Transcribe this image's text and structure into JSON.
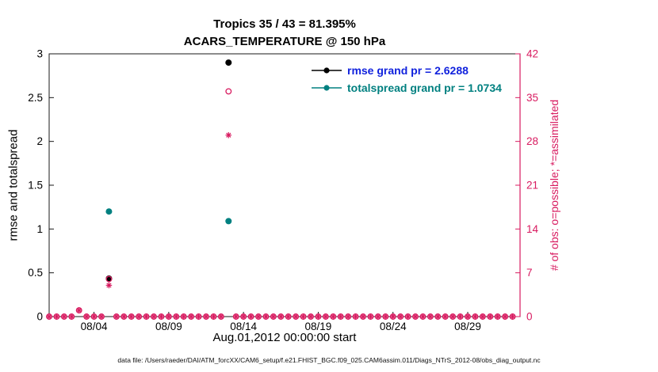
{
  "title": {
    "line1": "Tropics 35 / 43 = 81.395%",
    "line2": "ACARS_TEMPERATURE @ 150 hPa"
  },
  "colors": {
    "pink": "#d81b60",
    "teal": "#008080",
    "blue": "#1122dd",
    "black": "#000000",
    "frame": "#1a1a1a"
  },
  "legend": {
    "items": [
      {
        "label": "rmse grand pr = 2.6288",
        "marker": "line-dot",
        "marker_color_key": "black",
        "text_color_key": "blue"
      },
      {
        "label": "totalspread grand pr = 1.0734",
        "marker": "line-dot",
        "marker_color_key": "teal",
        "text_color_key": "teal"
      }
    ]
  },
  "axes": {
    "left": {
      "label": "rmse and totalspread",
      "ticks": [
        0,
        0.5,
        1,
        1.5,
        2,
        2.5,
        3
      ],
      "range": [
        0,
        3
      ]
    },
    "right": {
      "label": "# of obs: o=possible; *=assimilated",
      "ticks": [
        0,
        7,
        14,
        21,
        28,
        35,
        42
      ],
      "range": [
        0,
        42
      ]
    },
    "x": {
      "label": "Aug.01,2012 00:00:00 start",
      "ticks": [
        {
          "day": 4,
          "label": "08/04"
        },
        {
          "day": 9,
          "label": "08/09"
        },
        {
          "day": 14,
          "label": "08/14"
        },
        {
          "day": 19,
          "label": "08/19"
        },
        {
          "day": 24,
          "label": "08/24"
        },
        {
          "day": 29,
          "label": "08/29"
        }
      ],
      "range": [
        1,
        32.5
      ]
    }
  },
  "chart_data": {
    "type": "scatter",
    "x_unit": "day of August 2012 (day 1 = Aug 01, 2012 00:00:00)",
    "left_axis": "rmse and totalspread",
    "right_axis": "# of obs (0-42)",
    "grid": false,
    "legend_position": "top-right-inside",
    "series": [
      {
        "name": "rmse",
        "axis": "left",
        "marker": "filled-circle",
        "color_key": "black",
        "points": [
          [
            5.0,
            0.434
          ],
          [
            13.0,
            2.9
          ]
        ]
      },
      {
        "name": "totalspread",
        "axis": "left",
        "marker": "filled-circle",
        "color_key": "teal",
        "points": [
          [
            5.0,
            1.2
          ],
          [
            13.0,
            1.09
          ]
        ]
      },
      {
        "name": "possible",
        "axis": "right",
        "marker": "open-circle",
        "color_key": "pink",
        "points": [
          [
            3.0,
            1
          ],
          [
            5.0,
            6
          ],
          [
            13.0,
            36
          ]
        ]
      },
      {
        "name": "assimilated",
        "axis": "right",
        "marker": "asterisk",
        "color_key": "pink",
        "points": [
          [
            3.0,
            1
          ],
          [
            5.0,
            5
          ],
          [
            13.0,
            29
          ]
        ]
      }
    ],
    "baseline_zero_markers": {
      "description": "possible (open circle) and assimilated (asterisk) markers at value 0 for every 12-hour bin with no obs",
      "series": [
        "possible",
        "assimilated"
      ],
      "start_day": 1,
      "end_day": 32,
      "step_days": 0.5,
      "value": 0
    },
    "grand_totals": {
      "possible": 43,
      "assimilated": 35,
      "percent_assimilated": 81.395,
      "rmse_grand": 2.6288,
      "totalspread_grand": 1.0734
    }
  },
  "footer": {
    "text": "data file: /Users/raeder/DAI/ATM_forcXX/CAM6_setup/f.e21.FHIST_BGC.f09_025.CAM6assim.011/Diags_NTrS_2012-08/obs_diag_output.nc"
  }
}
